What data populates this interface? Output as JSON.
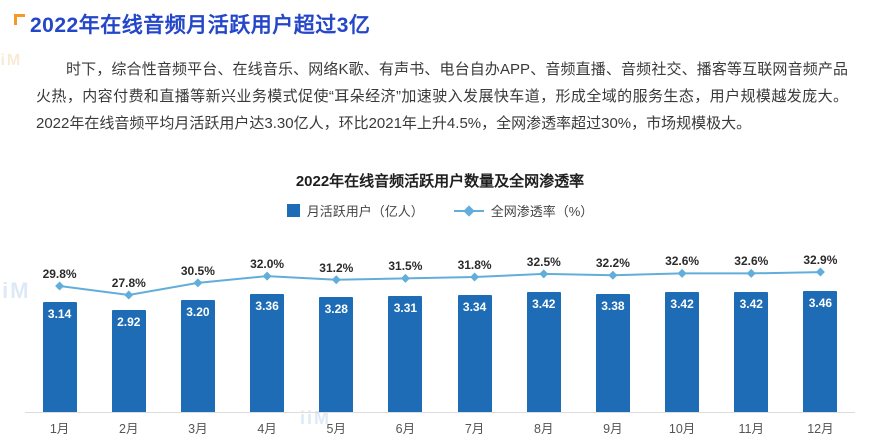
{
  "header": {
    "title": "2022年在线音频月活跃用户超过3亿",
    "accent_color": "#f59a23"
  },
  "intro": {
    "text": "时下，综合性音频平台、在线音乐、网络K歌、有声书、电台自办APP、音频直播、音频社交、播客等互联网音频产品火热，内容付费和直播等新兴业务模式促使“耳朵经济”加速驶入发展快车道，形成全域的服务生态，用户规模越发庞大。2022年在线音频平均月活跃用户达3.30亿人，环比2021年上升4.5%，全网渗透率超过30%，市场规模极大。"
  },
  "watermark": "iiM",
  "chart_data": {
    "type": "bar",
    "combo": "bar+line",
    "title": "2022年在线音频活跃用户数量及全网渗透率",
    "categories": [
      "1月",
      "2月",
      "3月",
      "4月",
      "5月",
      "6月",
      "7月",
      "8月",
      "9月",
      "10月",
      "11月",
      "12月"
    ],
    "series": [
      {
        "name": "月活跃用户（亿人）",
        "type": "bar",
        "color": "#1d6cb5",
        "values": [
          3.14,
          2.92,
          3.2,
          3.36,
          3.28,
          3.31,
          3.34,
          3.42,
          3.38,
          3.42,
          3.42,
          3.46
        ]
      },
      {
        "name": "全网渗透率（%）",
        "type": "line",
        "color": "#62aeda",
        "values": [
          29.8,
          27.8,
          30.5,
          32.0,
          31.2,
          31.5,
          31.8,
          32.5,
          32.2,
          32.6,
          32.6,
          32.9
        ]
      }
    ],
    "xlabel": "",
    "ylabel": "",
    "bar_value_range": [
      0,
      3.46
    ],
    "line_value_range": [
      27.8,
      32.9
    ],
    "legend_position": "top",
    "grid": false,
    "value_labels": "shown on every bar (2 decimals) and every line point (1 decimal + %)"
  }
}
